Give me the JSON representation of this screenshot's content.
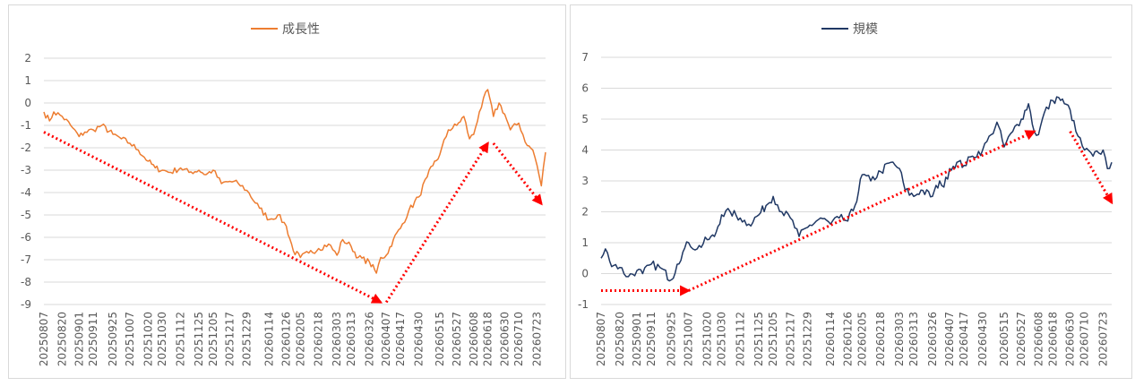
{
  "chart_data": [
    {
      "type": "line",
      "title": "",
      "legend_position": "top",
      "ylim": [
        -9,
        2
      ],
      "y_ticks": [
        2,
        1,
        0,
        -1,
        -2,
        -3,
        -4,
        -5,
        -6,
        -7,
        -8,
        -9
      ],
      "grid": true,
      "x_ticks": [
        "20250807",
        "20250820",
        "20250901",
        "20250911",
        "20250925",
        "20251007",
        "20251020",
        "20251030",
        "20251112",
        "20251125",
        "20251205",
        "20251217",
        "20251229",
        "20260114",
        "20260126",
        "20260205",
        "20260218",
        "20260303",
        "20260313",
        "20260326",
        "20260407",
        "20260417",
        "20260430",
        "20260515",
        "20260527",
        "20260608",
        "20260618",
        "20260630",
        "20260710",
        "20260723"
      ],
      "series": [
        {
          "name": "成長性",
          "color": "#ED7D31",
          "keypoints": [
            [
              "20250807",
              -0.4
            ],
            [
              "20250811",
              -0.8
            ],
            [
              "20250814",
              -0.4
            ],
            [
              "20250820",
              -0.6
            ],
            [
              "20250826",
              -1.0
            ],
            [
              "20250901",
              -1.5
            ],
            [
              "20250905",
              -1.3
            ],
            [
              "20250911",
              -1.2
            ],
            [
              "20250917",
              -1.0
            ],
            [
              "20250925",
              -1.4
            ],
            [
              "20251001",
              -1.6
            ],
            [
              "20251007",
              -1.8
            ],
            [
              "20251013",
              -2.1
            ],
            [
              "20251020",
              -2.6
            ],
            [
              "20251025",
              -2.9
            ],
            [
              "20251030",
              -3.0
            ],
            [
              "20251105",
              -3.1
            ],
            [
              "20251112",
              -2.9
            ],
            [
              "20251118",
              -3.1
            ],
            [
              "20251125",
              -3.0
            ],
            [
              "20251130",
              -3.2
            ],
            [
              "20251205",
              -3.0
            ],
            [
              "20251211",
              -3.6
            ],
            [
              "20251217",
              -3.5
            ],
            [
              "20251223",
              -3.6
            ],
            [
              "20251229",
              -3.9
            ],
            [
              "20260107",
              -4.7
            ],
            [
              "20260114",
              -5.2
            ],
            [
              "20260120",
              -5.0
            ],
            [
              "20260126",
              -5.5
            ],
            [
              "20260131",
              -6.6
            ],
            [
              "20260205",
              -6.9
            ],
            [
              "20260211",
              -6.7
            ],
            [
              "20260218",
              -6.5
            ],
            [
              "20260225",
              -6.3
            ],
            [
              "20260303",
              -6.8
            ],
            [
              "20260307",
              -6.1
            ],
            [
              "20260313",
              -6.4
            ],
            [
              "20260318",
              -6.9
            ],
            [
              "20260326",
              -7.1
            ],
            [
              "20260331",
              -7.6
            ],
            [
              "20260403",
              -6.9
            ],
            [
              "20260407",
              -6.8
            ],
            [
              "20260412",
              -6.1
            ],
            [
              "20260417",
              -5.6
            ],
            [
              "20260423",
              -4.8
            ],
            [
              "20260430",
              -4.2
            ],
            [
              "20260506",
              -3.3
            ],
            [
              "20260510",
              -2.8
            ],
            [
              "20260515",
              -2.3
            ],
            [
              "20260521",
              -1.2
            ],
            [
              "20260527",
              -1.0
            ],
            [
              "20260601",
              -0.6
            ],
            [
              "20260605",
              -1.6
            ],
            [
              "20260608",
              -1.4
            ],
            [
              "20260612",
              -0.4
            ],
            [
              "20260618",
              0.6
            ],
            [
              "20260622",
              -0.6
            ],
            [
              "20260626",
              0.0
            ],
            [
              "20260630",
              -0.5
            ],
            [
              "20260704",
              -1.2
            ],
            [
              "20260710",
              -0.9
            ],
            [
              "20260716",
              -1.9
            ],
            [
              "20260720",
              -2.1
            ],
            [
              "20260723",
              -2.8
            ],
            [
              "20260726",
              -3.7
            ],
            [
              "20260729",
              -2.2
            ]
          ]
        }
      ],
      "annotations": [
        {
          "from": [
            "20250807",
            -1.3
          ],
          "to": [
            "20260403",
            -8.9
          ]
        },
        {
          "from": [
            "20260407",
            -8.9
          ],
          "to": [
            "20260618",
            -1.8
          ]
        },
        {
          "from": [
            "20260622",
            -1.8
          ],
          "to": [
            "20260726",
            -4.5
          ]
        }
      ],
      "annotation_color": "#FF0000"
    },
    {
      "type": "line",
      "title": "",
      "legend_position": "top",
      "ylim": [
        -1,
        7
      ],
      "y_ticks": [
        7,
        6,
        5,
        4,
        3,
        2,
        1,
        0,
        -1
      ],
      "grid": true,
      "x_ticks": [
        "20250807",
        "20250820",
        "20250901",
        "20250911",
        "20250925",
        "20251007",
        "20251020",
        "20251030",
        "20251112",
        "20251125",
        "20251205",
        "20251217",
        "20251229",
        "20260114",
        "20260126",
        "20260205",
        "20260218",
        "20260303",
        "20260313",
        "20260326",
        "20260407",
        "20260417",
        "20260430",
        "20260515",
        "20260527",
        "20260608",
        "20260618",
        "20260630",
        "20260710",
        "20260723"
      ],
      "series": [
        {
          "name": "規模",
          "color": "#203864",
          "keypoints": [
            [
              "20250807",
              0.5
            ],
            [
              "20250810",
              0.8
            ],
            [
              "20250813",
              0.4
            ],
            [
              "20250820",
              0.2
            ],
            [
              "20250826",
              -0.1
            ],
            [
              "20250901",
              0.1
            ],
            [
              "20250905",
              0.0
            ],
            [
              "20250911",
              0.3
            ],
            [
              "20250917",
              0.2
            ],
            [
              "20250925",
              -0.2
            ],
            [
              "20250929",
              0.3
            ],
            [
              "20251003",
              0.7
            ],
            [
              "20251007",
              1.0
            ],
            [
              "20251013",
              0.8
            ],
            [
              "20251020",
              1.1
            ],
            [
              "20251025",
              1.2
            ],
            [
              "20251030",
              1.9
            ],
            [
              "20251105",
              2.0
            ],
            [
              "20251112",
              1.8
            ],
            [
              "20251118",
              1.6
            ],
            [
              "20251125",
              1.9
            ],
            [
              "20251130",
              2.2
            ],
            [
              "20251205",
              2.5
            ],
            [
              "20251211",
              2.0
            ],
            [
              "20251217",
              1.8
            ],
            [
              "20251223",
              1.2
            ],
            [
              "20251229",
              1.5
            ],
            [
              "20260107",
              1.8
            ],
            [
              "20260114",
              1.6
            ],
            [
              "20260120",
              1.8
            ],
            [
              "20260126",
              1.7
            ],
            [
              "20260131",
              2.2
            ],
            [
              "20260205",
              3.2
            ],
            [
              "20260211",
              3.0
            ],
            [
              "20260218",
              3.3
            ],
            [
              "20260225",
              3.6
            ],
            [
              "20260303",
              3.4
            ],
            [
              "20260307",
              2.7
            ],
            [
              "20260313",
              2.5
            ],
            [
              "20260318",
              2.7
            ],
            [
              "20260326",
              2.5
            ],
            [
              "20260331",
              3.0
            ],
            [
              "20260403",
              2.8
            ],
            [
              "20260407",
              3.4
            ],
            [
              "20260412",
              3.6
            ],
            [
              "20260417",
              3.5
            ],
            [
              "20260423",
              3.8
            ],
            [
              "20260430",
              4.0
            ],
            [
              "20260506",
              4.5
            ],
            [
              "20260510",
              4.9
            ],
            [
              "20260515",
              4.1
            ],
            [
              "20260521",
              4.6
            ],
            [
              "20260527",
              5.0
            ],
            [
              "20260601",
              5.5
            ],
            [
              "20260605",
              4.6
            ],
            [
              "20260608",
              4.5
            ],
            [
              "20260612",
              5.2
            ],
            [
              "20260618",
              5.6
            ],
            [
              "20260622",
              5.7
            ],
            [
              "20260626",
              5.5
            ],
            [
              "20260630",
              5.3
            ],
            [
              "20260704",
              4.6
            ],
            [
              "20260710",
              4.0
            ],
            [
              "20260716",
              3.8
            ],
            [
              "20260720",
              3.9
            ],
            [
              "20260723",
              4.0
            ],
            [
              "20260726",
              3.4
            ],
            [
              "20260729",
              3.6
            ]
          ]
        }
      ],
      "annotations": [
        {
          "from": [
            "20250807",
            -0.55
          ],
          "to": [
            "20251007",
            -0.55
          ]
        },
        {
          "from": [
            "20251007",
            -0.55
          ],
          "to": [
            "20260605",
            4.6
          ]
        },
        {
          "from": [
            "20260630",
            4.6
          ],
          "to": [
            "20260729",
            2.3
          ]
        }
      ],
      "annotation_color": "#FF0000"
    }
  ]
}
